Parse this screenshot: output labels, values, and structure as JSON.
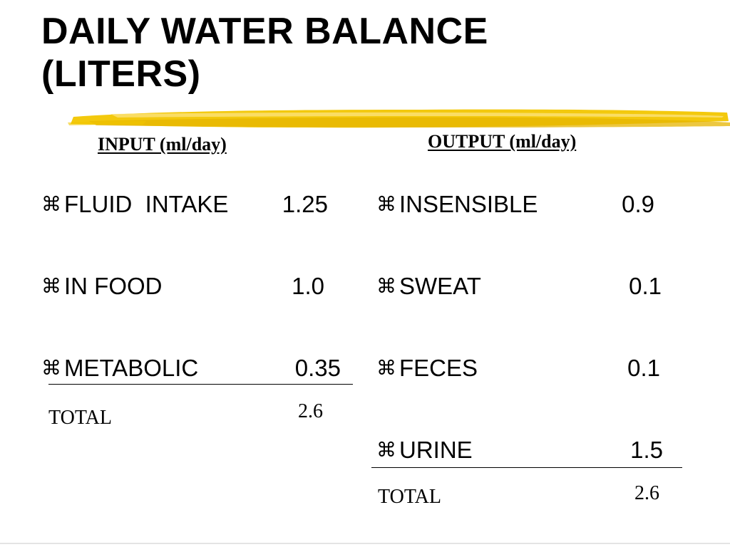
{
  "title": {
    "line1": "DAILY WATER BALANCE",
    "line2": "(LITERS)"
  },
  "accent_color": "#f2c600",
  "bullet_glyph": "⌘",
  "input": {
    "header": "INPUT (ml/day)",
    "items": [
      {
        "label": "FLUID  INTAKE",
        "value": "1.25"
      },
      {
        "label": "IN FOOD",
        "value": "1.0"
      },
      {
        "label": "METABOLIC",
        "value": "0.35"
      }
    ],
    "total_label": "TOTAL",
    "total_value": "2.6"
  },
  "output": {
    "header": "OUTPUT (ml/day)",
    "items": [
      {
        "label": "INSENSIBLE",
        "value": "0.9"
      },
      {
        "label": "SWEAT",
        "value": "0.1"
      },
      {
        "label": "FECES",
        "value": "0.1"
      },
      {
        "label": "URINE",
        "value": "1.5"
      }
    ],
    "total_label": "TOTAL",
    "total_value": "2.6"
  }
}
